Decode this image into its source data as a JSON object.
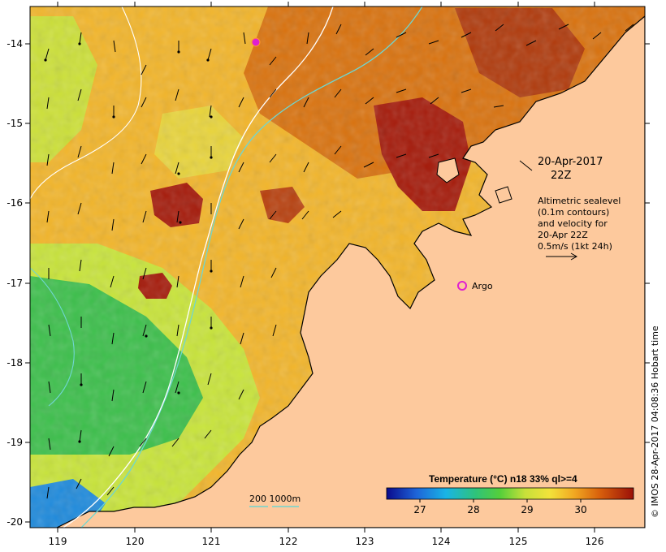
{
  "map": {
    "lon_range": [
      118.6,
      126.7
    ],
    "lat_range": [
      -20.05,
      -13.6
    ],
    "x_ticks": [
      "119",
      "120",
      "121",
      "122",
      "123",
      "124",
      "125",
      "126"
    ],
    "y_ticks": [
      "-14",
      "-15",
      "-16",
      "-17",
      "-18",
      "-19",
      "-20"
    ],
    "colors": {
      "land": "#fdc99d",
      "coast": "#000000",
      "contour_200m": "#6fd6d0",
      "contour_1000m": "#ffffff",
      "warm_core": "#a51a0a",
      "warm": "#d9720e",
      "mid": "#f2b52a",
      "cool": "#c8e43a",
      "cold": "#3cbf4b",
      "argo": "#e020d0"
    }
  },
  "annotations": {
    "date": "20-Apr-2017",
    "time": "22Z",
    "desc_lines": [
      "Altimetric sealevel",
      "(0.1m contours)",
      "and velocity for",
      "20-Apr 22Z",
      "0.5m/s (1kt 24h)"
    ],
    "argo_label": "Argo",
    "depth_legend": "200  1000m",
    "credit": "© IMOS 28-Apr-2017 04:08:36 Hobart time"
  },
  "colorbar": {
    "title": "Temperature (°C) n18 33% ql>=4",
    "ticks": [
      "27",
      "28",
      "29",
      "30"
    ],
    "range": [
      26.6,
      31.2
    ]
  }
}
